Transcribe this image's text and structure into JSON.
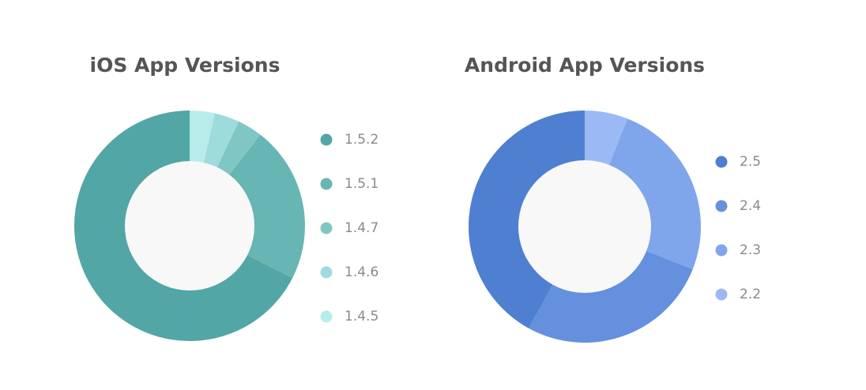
{
  "chart_data": [
    {
      "type": "donut",
      "title": "iOS App Versions",
      "categories": [
        "1.5.2",
        "1.5.1",
        "1.4.7",
        "1.4.6",
        "1.4.5"
      ],
      "values": [
        67.5,
        22,
        3.5,
        3.5,
        3.5
      ],
      "colors": [
        "#52a6a5",
        "#67b6b4",
        "#7fc6c4",
        "#9ddcdb",
        "#b8ecea"
      ],
      "legend": "right"
    },
    {
      "type": "donut",
      "title": "Android App Versions",
      "categories": [
        "2.5",
        "2.4",
        "2.3",
        "2.2"
      ],
      "values": [
        42,
        27,
        25,
        6
      ],
      "colors": [
        "#4f7fd0",
        "#6590de",
        "#7fa5ea",
        "#9bbaf5"
      ],
      "legend": "right"
    }
  ]
}
